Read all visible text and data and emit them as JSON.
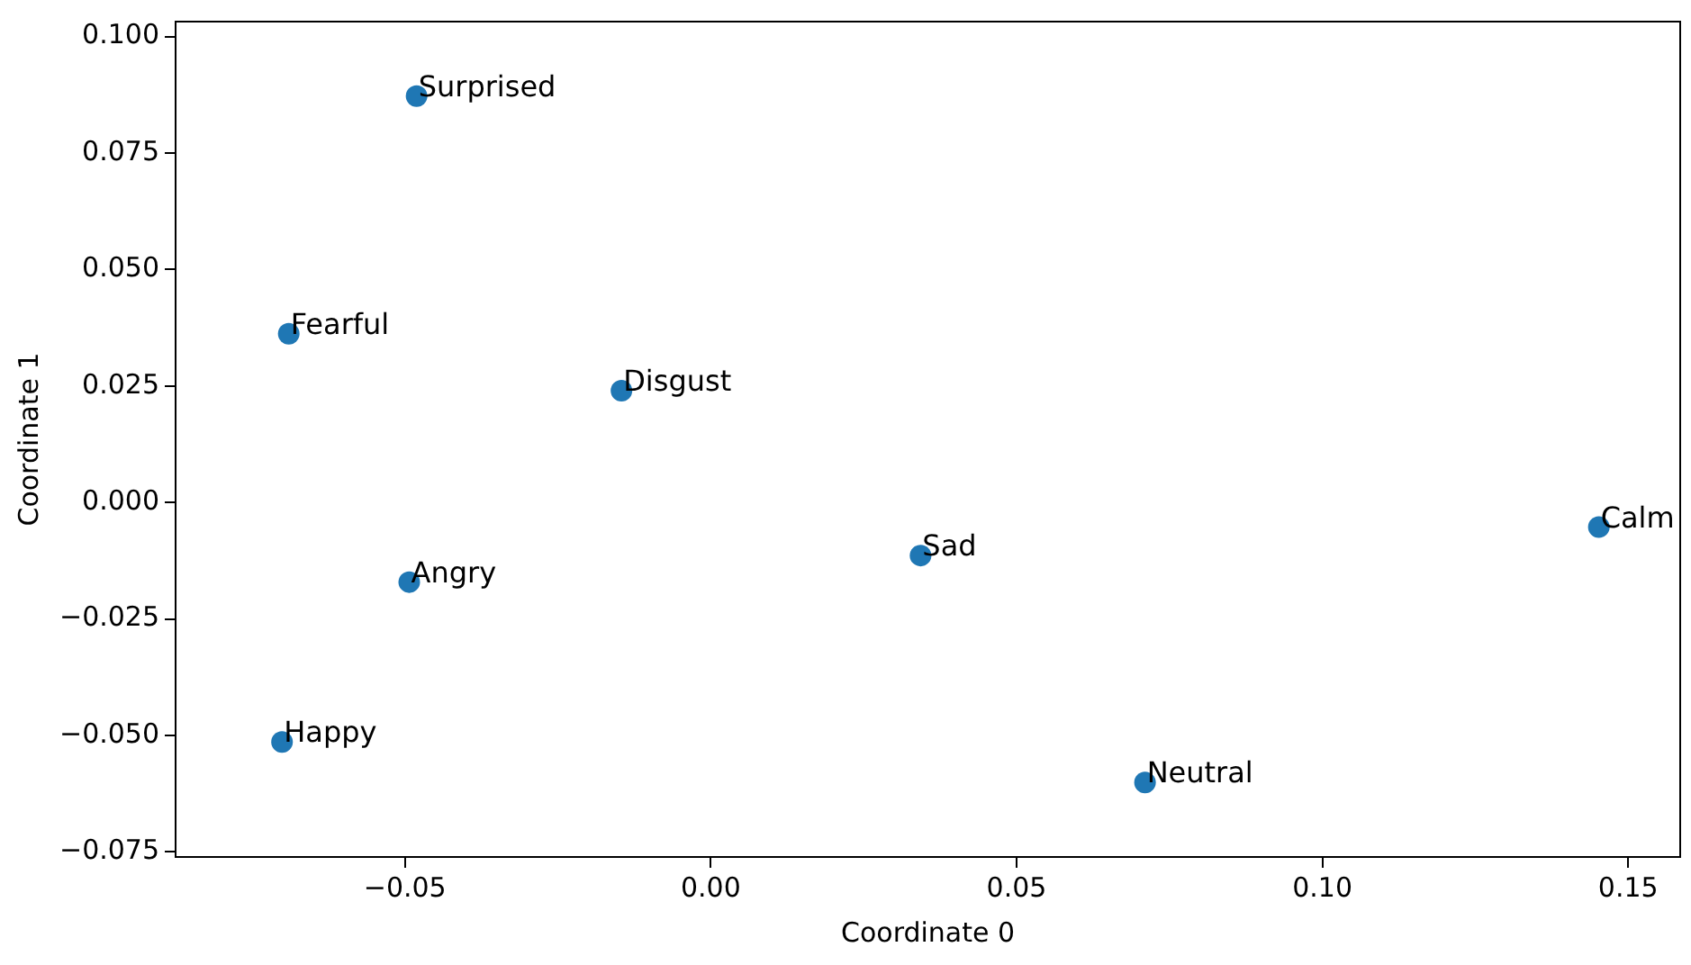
{
  "chart_data": {
    "type": "scatter",
    "xlabel": "Coordinate 0",
    "ylabel": "Coordinate 1",
    "x": [
      -0.0481,
      -0.069,
      -0.0146,
      -0.0493,
      -0.0701,
      0.0343,
      0.071,
      0.1452
    ],
    "series": [
      {
        "color": "#1f77b4",
        "values": [
          0.0872,
          0.0362,
          0.024,
          -0.0171,
          -0.0514,
          -0.0114,
          -0.0601,
          -0.0053
        ]
      }
    ],
    "marker": "circle",
    "grid": false,
    "legend": false,
    "xlim": [
      -0.0875,
      0.1585
    ],
    "ylim": [
      -0.0761,
      0.1032
    ],
    "xticks": [
      {
        "value": -0.05,
        "label": "−0.05"
      },
      {
        "value": 0,
        "label": "0.00"
      },
      {
        "value": 0.05,
        "label": "0.05"
      },
      {
        "value": 0.1,
        "label": "0.10"
      },
      {
        "value": 0.15,
        "label": "0.15"
      }
    ],
    "yticks": [
      {
        "value": -0.075,
        "label": "−0.075"
      },
      {
        "value": -0.05,
        "label": "−0.050"
      },
      {
        "value": -0.025,
        "label": "−0.025"
      },
      {
        "value": 0,
        "label": "0.000"
      },
      {
        "value": 0.025,
        "label": "0.025"
      },
      {
        "value": 0.05,
        "label": "0.050"
      },
      {
        "value": 0.075,
        "label": "0.075"
      },
      {
        "value": 0.1,
        "label": "0.100"
      }
    ],
    "annotations": [
      {
        "text": "Surprised",
        "x": -0.0481,
        "y": 0.0872
      },
      {
        "text": "Fearful",
        "x": -0.069,
        "y": 0.0362
      },
      {
        "text": "Disgust",
        "x": -0.0146,
        "y": 0.024
      },
      {
        "text": "Angry",
        "x": -0.0493,
        "y": -0.0171
      },
      {
        "text": "Happy",
        "x": -0.0701,
        "y": -0.0514
      },
      {
        "text": "Sad",
        "x": 0.0343,
        "y": -0.0114
      },
      {
        "text": "Neutral",
        "x": 0.071,
        "y": -0.0601
      },
      {
        "text": "Calm",
        "x": 0.1452,
        "y": -0.0053
      }
    ]
  }
}
